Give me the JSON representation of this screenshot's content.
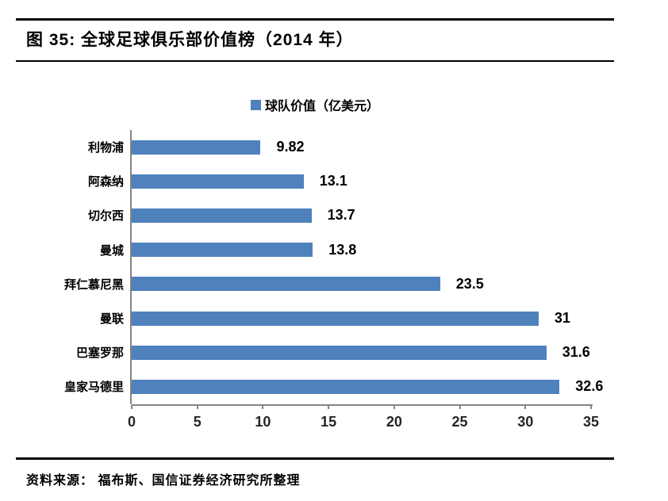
{
  "header": {
    "title": "图 35: 全球足球俱乐部价值榜（2014 年）"
  },
  "chart_data": {
    "type": "bar",
    "orientation": "horizontal",
    "title": "全球足球俱乐部价值榜（2014 年）",
    "legend": "球队价值（亿美元）",
    "legend_position": "top-center",
    "categories": [
      "利物浦",
      "阿森纳",
      "切尔西",
      "曼城",
      "拜仁慕尼黑",
      "曼联",
      "巴塞罗那",
      "皇家马德里"
    ],
    "values": [
      9.82,
      13.1,
      13.7,
      13.8,
      23.5,
      31,
      31.6,
      32.6
    ],
    "value_labels": [
      "9.82",
      "13.1",
      "13.7",
      "13.8",
      "23.5",
      "31",
      "31.6",
      "32.6"
    ],
    "xlabel": "",
    "ylabel": "",
    "xlim": [
      0,
      35
    ],
    "x_ticks": [
      "0",
      "5",
      "10",
      "15",
      "20",
      "25",
      "30",
      "35"
    ],
    "grid": "off",
    "bar_color": "#4F81BD",
    "axis_color": "#848484"
  },
  "footer": {
    "source": "资料来源： 福布斯、国信证券经济研究所整理"
  }
}
